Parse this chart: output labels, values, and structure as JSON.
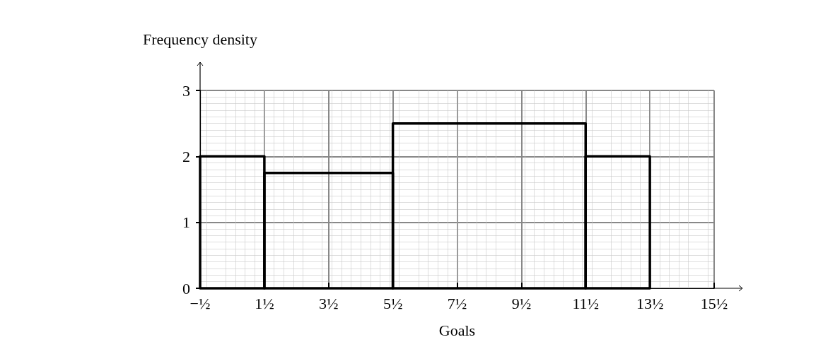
{
  "chart_data": {
    "type": "histogram",
    "xlabel": "Goals",
    "ylabel": "Frequency density",
    "bins": [
      -0.5,
      1.5,
      5.5,
      11.5,
      13.5
    ],
    "values": [
      2,
      1.75,
      2.5,
      2
    ],
    "color": "#000000",
    "xlim": [
      -0.5,
      15.5
    ],
    "ylim": [
      0,
      3
    ],
    "xticks": [
      {
        "value": -0.5,
        "label": "−½"
      },
      {
        "value": 1.5,
        "label": "1½"
      },
      {
        "value": 3.5,
        "label": "3½"
      },
      {
        "value": 5.5,
        "label": "5½"
      },
      {
        "value": 7.5,
        "label": "7½"
      },
      {
        "value": 9.5,
        "label": "9½"
      },
      {
        "value": 11.5,
        "label": "11½"
      },
      {
        "value": 13.5,
        "label": "13½"
      },
      {
        "value": 15.5,
        "label": "15½"
      }
    ],
    "yticks": [
      0,
      1,
      2,
      3
    ],
    "grid": true
  }
}
